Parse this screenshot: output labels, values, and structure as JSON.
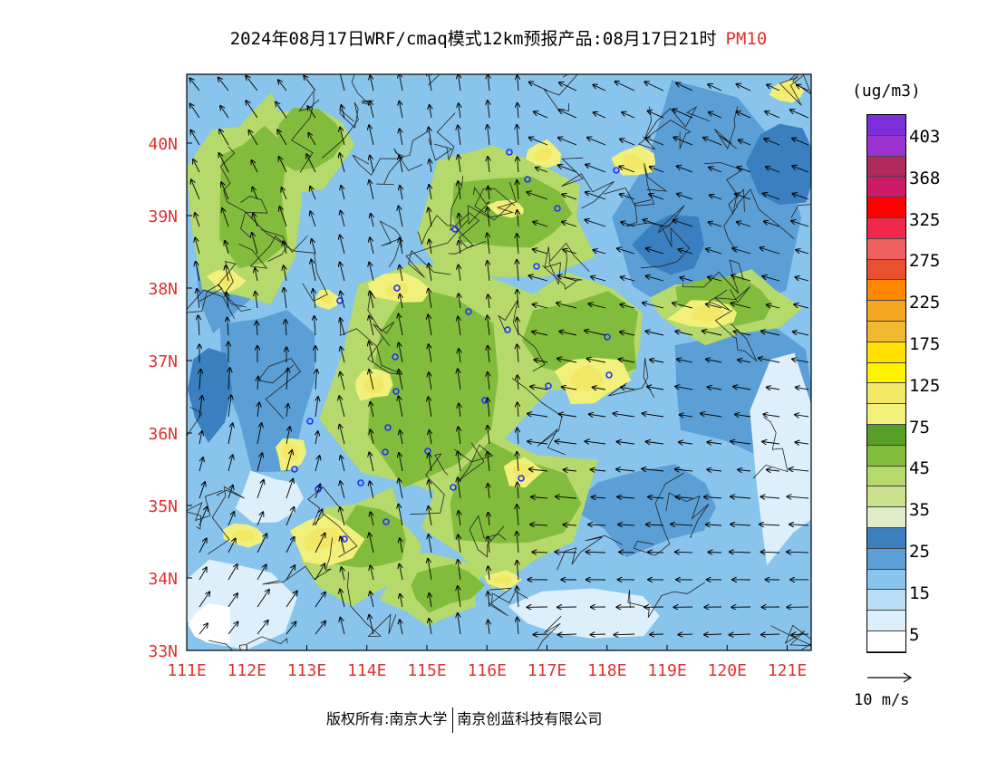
{
  "title": {
    "text": "2024年08月17日WRF/cmaq模式12km预报产品:08月17日21时",
    "variable": "PM10"
  },
  "map": {
    "lon_labels": [
      "111E",
      "112E",
      "113E",
      "114E",
      "115E",
      "116E",
      "117E",
      "118E",
      "119E",
      "120E",
      "121E"
    ],
    "lat_labels": [
      "33N",
      "34N",
      "35N",
      "36N",
      "37N",
      "38N",
      "39N",
      "40N"
    ],
    "label_color": "#e03030"
  },
  "colorbar": {
    "unit": "(ug/m3)",
    "colors": [
      "#7b2fd8",
      "#9a33d0",
      "#b02a5e",
      "#cc1a66",
      "#ff0000",
      "#f0284a",
      "#f06060",
      "#e85030",
      "#ff8800",
      "#f5a623",
      "#f2b830",
      "#ffe000",
      "#fff200",
      "#f2e866",
      "#f0f07a",
      "#5a9e2a",
      "#82bc3c",
      "#b5d96a",
      "#c9e08c",
      "#e0ebc8",
      "#3a7fbf",
      "#5b9fd6",
      "#88c4ec",
      "#b8def5",
      "#dceffa",
      "#ffffff"
    ],
    "labels": [
      "403",
      "368",
      "325",
      "275",
      "225",
      "175",
      "125",
      "75",
      "45",
      "35",
      "25",
      "15",
      "5"
    ]
  },
  "wind_reference": {
    "label": "10 m/s"
  },
  "footer": {
    "left": "版权所有:南京大学",
    "right": "南京创蓝科技有限公司"
  }
}
